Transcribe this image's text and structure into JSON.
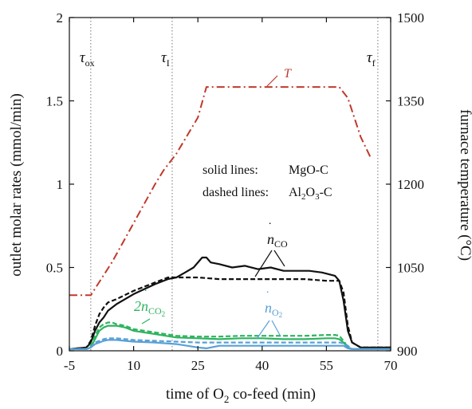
{
  "chart_data": {
    "type": "line",
    "x_axis": {
      "label": "time of O2 co-feed (min)",
      "range": [
        -5,
        70
      ],
      "ticks": [
        -5,
        10,
        25,
        40,
        55,
        70
      ],
      "tick_labels": [
        "-5",
        "10",
        "25",
        "40",
        "55",
        "70"
      ]
    },
    "y_axis_left": {
      "label": "outlet molar rates (mmol/min)",
      "range": [
        0,
        2
      ],
      "ticks": [
        0,
        0.5,
        1,
        1.5,
        2
      ],
      "tick_labels": [
        "0",
        "0.5",
        "1",
        "1.5",
        "2"
      ]
    },
    "y_axis_right": {
      "label": "furnace temperature (°C)",
      "range": [
        900,
        1500
      ],
      "ticks": [
        900,
        1050,
        1200,
        1350,
        1500
      ],
      "tick_labels": [
        "900",
        "1050",
        "1200",
        "1350",
        "1500"
      ]
    },
    "markers": [
      {
        "label": "τox",
        "main": "τ",
        "sub": "ox",
        "x": 0
      },
      {
        "label": "τI",
        "main": "τ",
        "sub": "I",
        "x": 19
      },
      {
        "label": "τf",
        "main": "τ",
        "sub": "f",
        "x": 67
      }
    ],
    "legend_text": {
      "solid_label": "solid lines:",
      "solid_value": "MgO-C",
      "dashed_label": "dashed lines:",
      "dashed_value_parts": [
        "Al",
        "2",
        "O",
        "3",
        "-C"
      ]
    },
    "series_labels": {
      "T": "T",
      "nCO_main": "n",
      "nCO_sub": "CO",
      "nCO2_main": "2n",
      "nCO2_sub": "CO",
      "nCO2_subsub": "2",
      "nO2_main": "n",
      "nO2_sub": "O",
      "nO2_subsub": "2"
    },
    "colors": {
      "CO": "#111111",
      "CO2": "#2fb35f",
      "O2": "#5aa0d6",
      "T": "#c0392b"
    },
    "series": [
      {
        "name": "T",
        "axis": "right",
        "style": "dashdot",
        "color_key": "T",
        "x": [
          -5,
          -1,
          0,
          5,
          10,
          15,
          17,
          20,
          25,
          27,
          30,
          40,
          50,
          58,
          60,
          63,
          65.5
        ],
        "y": [
          1000,
          1000,
          1000,
          1060,
          1130,
          1200,
          1225,
          1255,
          1320,
          1375,
          1375,
          1375,
          1375,
          1375,
          1355,
          1285,
          1245
        ]
      },
      {
        "name": "CO solid (MgO-C)",
        "axis": "left",
        "style": "solid",
        "color_key": "CO",
        "x": [
          -5,
          -1,
          0,
          1,
          2,
          3,
          4,
          6,
          10,
          15,
          18,
          20,
          22,
          24,
          26,
          27,
          28,
          30,
          33,
          36,
          39,
          42,
          45,
          48,
          51,
          54,
          57,
          58,
          59,
          60,
          61,
          63,
          66,
          70
        ],
        "y": [
          0.01,
          0.02,
          0.05,
          0.12,
          0.17,
          0.2,
          0.24,
          0.28,
          0.34,
          0.4,
          0.43,
          0.44,
          0.47,
          0.5,
          0.56,
          0.56,
          0.53,
          0.52,
          0.5,
          0.51,
          0.49,
          0.5,
          0.48,
          0.48,
          0.48,
          0.47,
          0.45,
          0.42,
          0.3,
          0.12,
          0.05,
          0.02,
          0.02,
          0.02
        ]
      },
      {
        "name": "CO dashed (Al2O3-C)",
        "axis": "left",
        "style": "dashed",
        "color_key": "CO",
        "x": [
          -5,
          -1,
          0,
          1,
          2,
          3,
          4,
          6,
          10,
          15,
          18,
          20,
          25,
          30,
          35,
          40,
          45,
          50,
          55,
          58,
          59,
          60,
          61,
          63,
          66,
          70
        ],
        "y": [
          0.01,
          0.02,
          0.06,
          0.15,
          0.22,
          0.26,
          0.29,
          0.31,
          0.36,
          0.41,
          0.44,
          0.44,
          0.44,
          0.43,
          0.43,
          0.43,
          0.43,
          0.43,
          0.42,
          0.42,
          0.35,
          0.15,
          0.05,
          0.02,
          0.02,
          0.02
        ]
      },
      {
        "name": "2·CO2 solid (MgO-C)",
        "axis": "left",
        "style": "solid",
        "color_key": "CO2",
        "x": [
          -5,
          -1,
          0,
          1,
          2,
          3,
          4,
          5,
          6,
          8,
          10,
          15,
          20,
          25,
          30,
          35,
          40,
          45,
          50,
          55,
          57,
          58,
          59,
          60,
          61,
          63,
          66,
          70
        ],
        "y": [
          0.01,
          0.01,
          0.02,
          0.07,
          0.12,
          0.14,
          0.15,
          0.15,
          0.15,
          0.14,
          0.12,
          0.1,
          0.08,
          0.075,
          0.07,
          0.075,
          0.075,
          0.07,
          0.07,
          0.075,
          0.075,
          0.07,
          0.05,
          0.02,
          0.01,
          0.01,
          0.01,
          0.01
        ]
      },
      {
        "name": "2·CO2 dashed (Al2O3-C)",
        "axis": "left",
        "style": "dashed",
        "color_key": "CO2",
        "x": [
          -5,
          -1,
          0,
          1,
          2,
          3,
          4,
          5,
          6,
          8,
          10,
          15,
          20,
          25,
          30,
          35,
          40,
          45,
          50,
          55,
          57,
          58,
          59,
          60,
          61,
          63,
          66,
          70
        ],
        "y": [
          0.01,
          0.01,
          0.03,
          0.09,
          0.14,
          0.16,
          0.17,
          0.17,
          0.16,
          0.15,
          0.13,
          0.11,
          0.09,
          0.085,
          0.085,
          0.09,
          0.09,
          0.09,
          0.09,
          0.095,
          0.095,
          0.09,
          0.06,
          0.02,
          0.01,
          0.01,
          0.01,
          0.01
        ]
      },
      {
        "name": "O2 solid (MgO-C)",
        "axis": "left",
        "style": "solid",
        "color_key": "O2",
        "x": [
          -5,
          -1,
          0,
          1,
          2,
          3,
          4,
          5,
          6,
          8,
          10,
          15,
          20,
          25,
          27,
          30,
          35,
          40,
          45,
          50,
          55,
          57,
          58,
          59,
          60,
          61,
          63,
          66,
          70
        ],
        "y": [
          0.01,
          0.01,
          0.02,
          0.04,
          0.05,
          0.06,
          0.065,
          0.065,
          0.065,
          0.06,
          0.055,
          0.05,
          0.04,
          0.02,
          0.015,
          0.03,
          0.03,
          0.03,
          0.03,
          0.03,
          0.03,
          0.03,
          0.03,
          0.03,
          0.015,
          0.01,
          0.01,
          0.01,
          0.01
        ]
      },
      {
        "name": "O2 dashed (Al2O3-C)",
        "axis": "left",
        "style": "dashed",
        "color_key": "O2",
        "x": [
          -5,
          -1,
          0,
          1,
          2,
          3,
          4,
          5,
          6,
          8,
          10,
          15,
          20,
          25,
          30,
          35,
          40,
          45,
          50,
          55,
          57,
          58,
          59,
          60,
          61,
          63,
          66,
          70
        ],
        "y": [
          0.01,
          0.01,
          0.02,
          0.05,
          0.06,
          0.07,
          0.075,
          0.075,
          0.075,
          0.07,
          0.065,
          0.06,
          0.055,
          0.05,
          0.05,
          0.05,
          0.05,
          0.05,
          0.05,
          0.05,
          0.05,
          0.05,
          0.045,
          0.03,
          0.01,
          0.01,
          0.01,
          0.01
        ]
      }
    ]
  }
}
